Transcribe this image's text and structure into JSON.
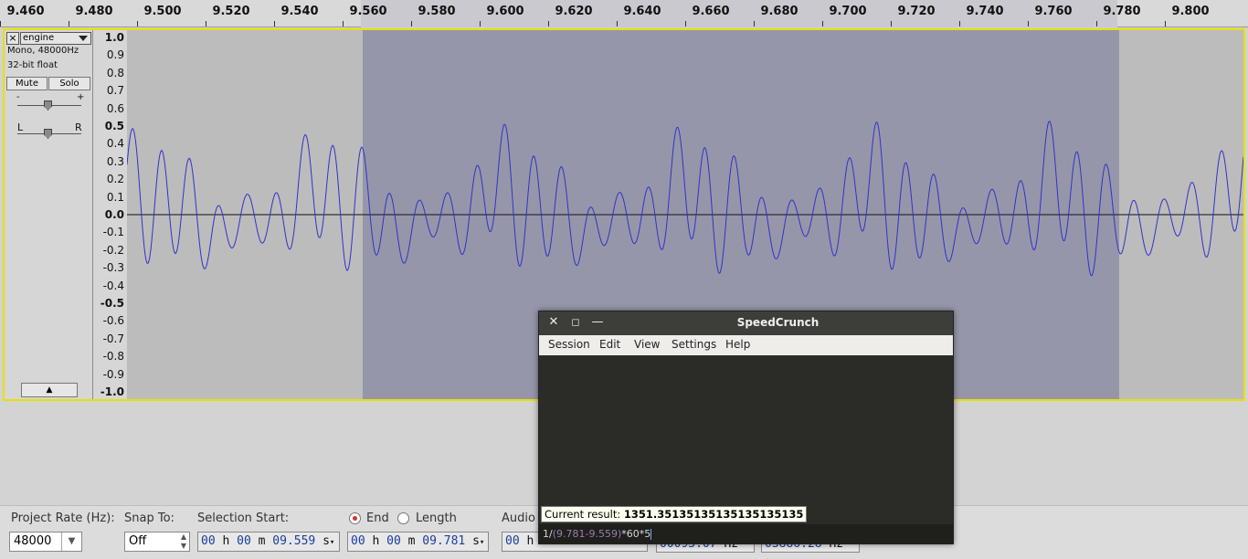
{
  "ruler": {
    "labels": [
      "9.460",
      "9.480",
      "9.500",
      "9.520",
      "9.540",
      "9.560",
      "9.580",
      "9.600",
      "9.620",
      "9.640",
      "9.660",
      "9.680",
      "9.700",
      "9.720",
      "9.740",
      "9.760",
      "9.780",
      "9.800"
    ]
  },
  "track": {
    "close_glyph": "×",
    "name": "engine",
    "format": "Mono, 48000Hz",
    "bit_depth": "32-bit float",
    "mute_label": "Mute",
    "solo_label": "Solo",
    "gain_minus": "-",
    "gain_plus": "+",
    "pan_left": "L",
    "pan_right": "R",
    "collapse_glyph": "▲",
    "amplitude_labels": [
      "1.0",
      "0.9",
      "0.8",
      "0.7",
      "0.6",
      "0.5",
      "0.4",
      "0.3",
      "0.2",
      "0.1",
      "0.0",
      "-0.1",
      "-0.2",
      "-0.3",
      "-0.4",
      "-0.5",
      "-0.6",
      "-0.7",
      "-0.8",
      "-0.9",
      "-1.0"
    ]
  },
  "colors": {
    "waveform": "#3232c8",
    "selection": "#9696aa",
    "track_border": "#e8e000",
    "background": "#bcbcbc"
  },
  "toolbar": {
    "project_rate_label": "Project Rate (Hz):",
    "project_rate_value": "48000",
    "snap_to_label": "Snap To:",
    "snap_to_value": "Off",
    "selection_start_label": "Selection Start:",
    "end_label": "End",
    "length_label": "Length",
    "audio_label": "Audio",
    "start_h": "00",
    "start_m": "00",
    "start_s": "09.559",
    "end_h": "00",
    "end_m": "00",
    "end_s": "09.781",
    "audio_h": "00",
    "unit_h": "h",
    "unit_m": "m",
    "unit_s": "s",
    "freq1": "00093.07",
    "freq2": "03886.28",
    "unit_hz": "Hz"
  },
  "speedcrunch": {
    "title": "SpeedCrunch",
    "menu": [
      "Session",
      "Edit",
      "View",
      "Settings",
      "Help"
    ],
    "result_label": "Current result:",
    "result_value": "1351.35135135135135135135",
    "input_prefix": "1/",
    "input_paren": "(9.781-9.559)",
    "input_op1": "*",
    "input_n1": "60",
    "input_op2": "*",
    "input_n2": "5"
  }
}
